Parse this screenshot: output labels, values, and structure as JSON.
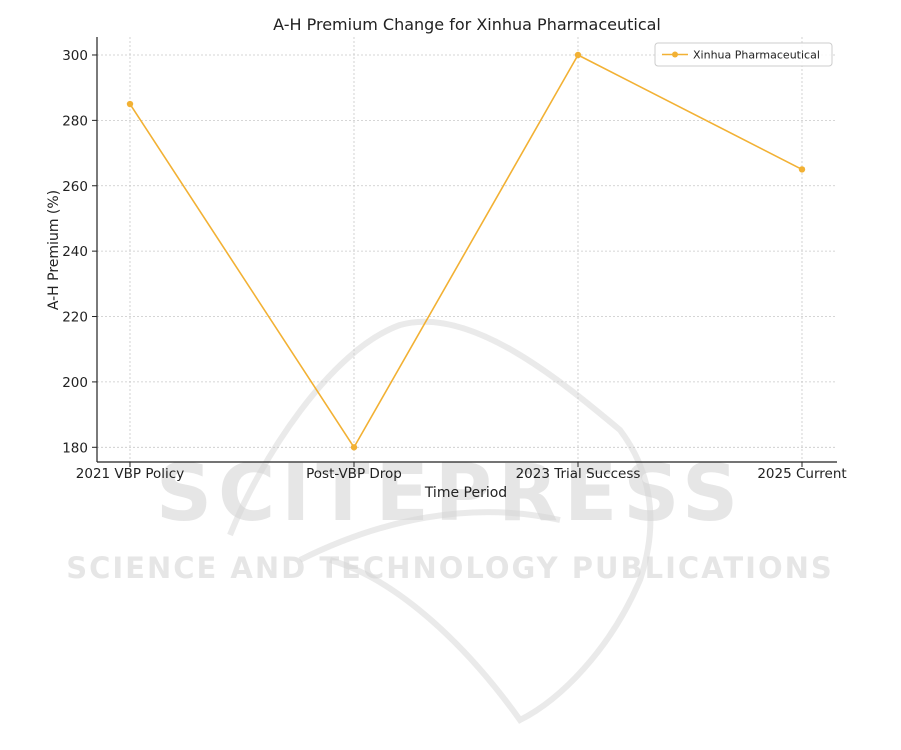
{
  "chart_data": {
    "type": "line",
    "title": "A-H Premium Change for Xinhua Pharmaceutical",
    "xlabel": "Time Period",
    "ylabel": "A-H Premium (%)",
    "categories": [
      "2021 VBP Policy",
      "Post-VBP Drop",
      "2023 Trial Success",
      "2025 Current"
    ],
    "series": [
      {
        "name": "Xinhua Pharmaceutical",
        "values": [
          285,
          180,
          300,
          265
        ],
        "color": "#f2b134"
      }
    ],
    "yticks": [
      180,
      200,
      220,
      240,
      260,
      280,
      300
    ],
    "ylim": [
      175.5,
      305.5
    ],
    "grid": true,
    "legend_position": "top-right"
  },
  "watermark": {
    "main": "SCITEPRESS",
    "sub": "SCIENCE AND TECHNOLOGY PUBLICATIONS",
    "color": "#d3d3d3"
  }
}
